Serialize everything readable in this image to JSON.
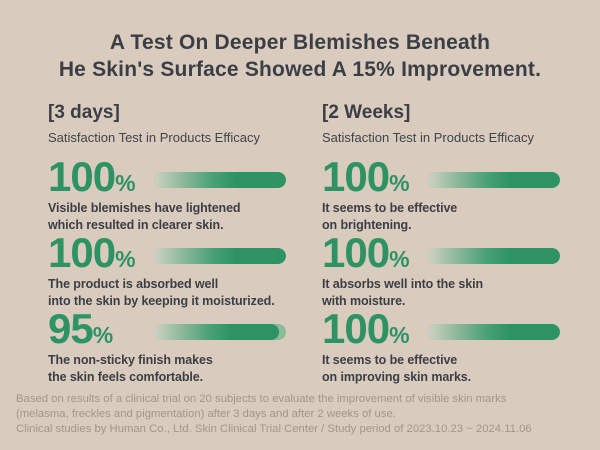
{
  "title": {
    "line1": "A Test On Deeper Blemishes Beneath",
    "line2": "He Skin's Surface Showed A 15% Improvement."
  },
  "columns": [
    {
      "period": "[3 days]",
      "subtitle": "Satisfaction Test in Products Efficacy",
      "stats": [
        {
          "value": "100",
          "unit": "%",
          "percent": 100,
          "desc_line1": "Visible blemishes have lightened",
          "desc_line2": "which resulted in clearer skin."
        },
        {
          "value": "100",
          "unit": "%",
          "percent": 100,
          "desc_line1": "The product is absorbed well",
          "desc_line2": "into the skin by keeping it moisturized."
        },
        {
          "value": "95",
          "unit": "%",
          "percent": 95,
          "desc_line1": "The non-sticky finish makes",
          "desc_line2": "the skin feels comfortable."
        }
      ]
    },
    {
      "period": "[2 Weeks]",
      "subtitle": "Satisfaction Test in Products Efficacy",
      "stats": [
        {
          "value": "100",
          "unit": "%",
          "percent": 100,
          "desc_line1": "It seems to be effective",
          "desc_line2": "on brightening."
        },
        {
          "value": "100",
          "unit": "%",
          "percent": 100,
          "desc_line1": "It absorbs well into the skin",
          "desc_line2": "with moisture."
        },
        {
          "value": "100",
          "unit": "%",
          "percent": 100,
          "desc_line1": "It seems to be effective",
          "desc_line2": "on improving skin marks."
        }
      ]
    }
  ],
  "footnote": {
    "lines": [
      "Based on results of a clinical trial on 20 subjects to evaluate the improvement of visible skin marks",
      "(melasma, freckles and pigmentation) after 3 days and after 2 weeks of use.",
      "Clinical studies by Human Co., Ltd. Skin Clinical Trial Center / Study period of 2023.10.23 ~ 2024.11.06"
    ]
  },
  "colors": {
    "background": "#d9cbbe",
    "text": "#3b3f45",
    "accent_green": "#2e9364",
    "bar_gradient_start": "#ced3c3",
    "bar_track_light_green": "#8abb9b",
    "footnote_text": "#a49687"
  },
  "chart_data": {
    "type": "bar",
    "title": "A Test On Deeper Blemishes Beneath He Skin's Surface Showed A 15% Improvement.",
    "unit": "%",
    "xlim": [
      0,
      100
    ],
    "legend_position": "none",
    "grid": false,
    "series": [
      {
        "name": "[3 days] Satisfaction Test in Products Efficacy",
        "categories": [
          "Visible blemishes have lightened which resulted in clearer skin.",
          "The product is absorbed well into the skin by keeping it moisturized.",
          "The non-sticky finish makes the skin feels comfortable."
        ],
        "values": [
          100,
          100,
          95
        ]
      },
      {
        "name": "[2 Weeks] Satisfaction Test in Products Efficacy",
        "categories": [
          "It seems to be effective on brightening.",
          "It absorbs well into the skin with moisture.",
          "It seems to be effective on improving skin marks."
        ],
        "values": [
          100,
          100,
          100
        ]
      }
    ]
  }
}
